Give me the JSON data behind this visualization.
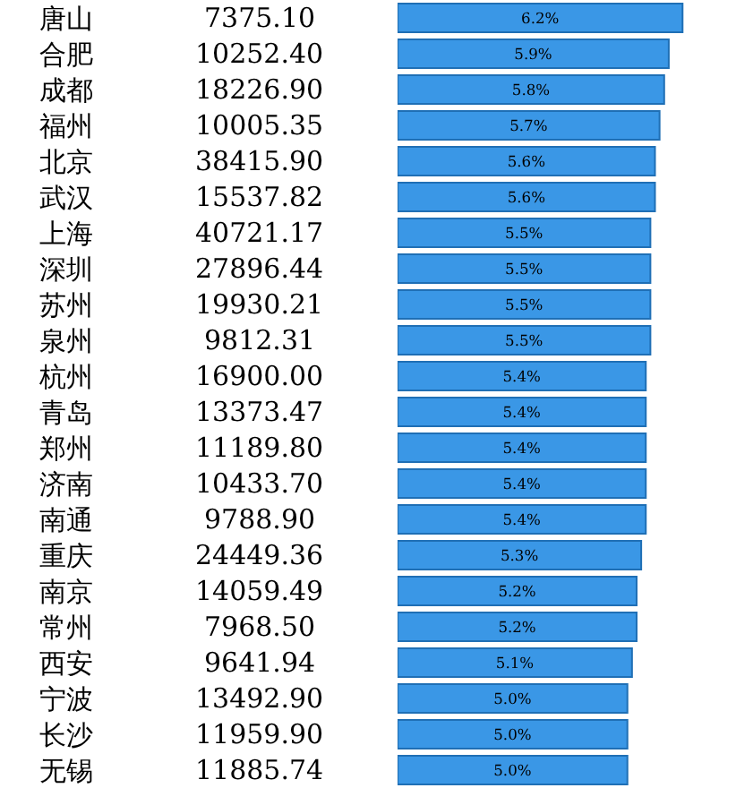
{
  "chart_data": {
    "type": "bar",
    "orientation": "horizontal",
    "categories": [
      "唐山",
      "合肥",
      "成都",
      "福州",
      "北京",
      "武汉",
      "上海",
      "深圳",
      "苏州",
      "泉州",
      "杭州",
      "青岛",
      "郑州",
      "济南",
      "南通",
      "重庆",
      "南京",
      "常州",
      "西安",
      "宁波",
      "长沙",
      "无锡"
    ],
    "values": [
      6.2,
      5.9,
      5.8,
      5.7,
      5.6,
      5.6,
      5.5,
      5.5,
      5.5,
      5.5,
      5.4,
      5.4,
      5.4,
      5.4,
      5.4,
      5.3,
      5.2,
      5.2,
      5.1,
      5.0,
      5.0,
      5.0
    ],
    "value_labels": [
      "6.2%",
      "5.9%",
      "5.8%",
      "5.7%",
      "5.6%",
      "5.6%",
      "5.5%",
      "5.5%",
      "5.5%",
      "5.5%",
      "5.4%",
      "5.4%",
      "5.4%",
      "5.4%",
      "5.4%",
      "5.3%",
      "5.2%",
      "5.2%",
      "5.1%",
      "5.0%",
      "5.0%",
      "5.0%"
    ],
    "color": "#3a97e6",
    "annotations": [
      "7375.10",
      "10252.40",
      "18226.90",
      "10005.35",
      "38415.90",
      "15537.82",
      "40721.17",
      "27896.44",
      "19930.21",
      "9812.31",
      "16900.00",
      "13373.47",
      "11189.80",
      "10433.70",
      "9788.90",
      "24449.36",
      "14059.49",
      "7968.50",
      "9641.94",
      "13492.90",
      "11959.90",
      "11885.74"
    ],
    "grid": false,
    "legend": false
  }
}
